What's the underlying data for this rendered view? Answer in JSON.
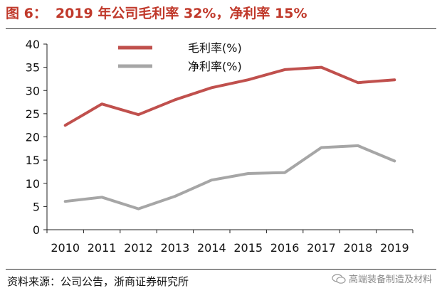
{
  "header": {
    "figure_label": "图 6：",
    "title_text": "2019 年公司毛利率 32%，净利率 15%"
  },
  "footer": {
    "source_text": "资料来源：公司公告，浙商证券研究所",
    "watermark_text": "高端装备制造及材料"
  },
  "chart_data": {
    "type": "line",
    "x": [
      "2010",
      "2011",
      "2012",
      "2013",
      "2014",
      "2015",
      "2016",
      "2017",
      "2018",
      "2019"
    ],
    "series": [
      {
        "name": "毛利率(%)",
        "color": "#c0504d",
        "values": [
          22.5,
          27.1,
          24.8,
          28.0,
          30.6,
          32.3,
          34.5,
          35.0,
          31.7,
          32.3
        ]
      },
      {
        "name": "净利率(%)",
        "color": "#a6a6a6",
        "values": [
          6.1,
          7.0,
          4.5,
          7.2,
          10.7,
          12.1,
          12.3,
          17.7,
          18.1,
          14.8
        ]
      }
    ],
    "ylim": [
      0,
      40
    ],
    "yticks": [
      "0",
      "5",
      "10",
      "15",
      "20",
      "25",
      "30",
      "35",
      "40"
    ],
    "legend_position": "top",
    "grid": false
  }
}
